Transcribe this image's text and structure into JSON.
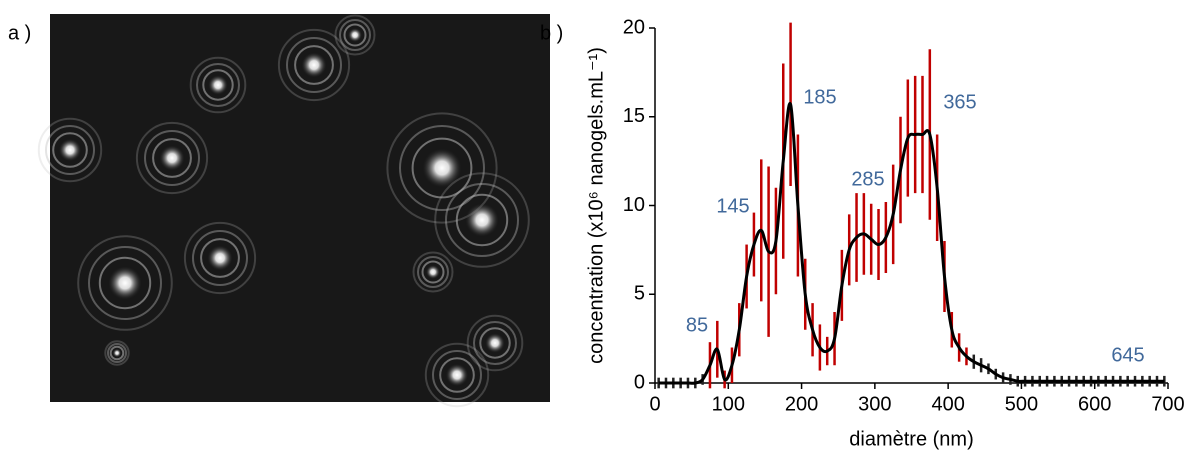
{
  "panel_labels": [
    "a )",
    "b )"
  ],
  "chart_data": {
    "type": "line",
    "xlabel": "diamètre (nm)",
    "ylabel": "concentration (x10⁶ nanogels.mL⁻¹)",
    "annotations": [
      "85",
      "145",
      "185",
      "285",
      "365",
      "645"
    ],
    "x": [
      5,
      15,
      25,
      35,
      45,
      55,
      65,
      75,
      85,
      95,
      105,
      115,
      125,
      135,
      145,
      155,
      165,
      175,
      185,
      195,
      205,
      215,
      225,
      235,
      245,
      255,
      265,
      275,
      285,
      295,
      305,
      315,
      325,
      335,
      345,
      355,
      365,
      375,
      385,
      395,
      405,
      415,
      425,
      435,
      445,
      455,
      465,
      475,
      485,
      495,
      505,
      515,
      525,
      535,
      545,
      555,
      565,
      575,
      585,
      595,
      605,
      615,
      625,
      635,
      645,
      655,
      665,
      675,
      685,
      695
    ],
    "values": [
      0,
      0,
      0,
      0,
      0,
      0,
      0.2,
      1.0,
      1.9,
      0.2,
      1.0,
      3.0,
      6.0,
      7.8,
      8.6,
      7.4,
      8.0,
      12.5,
      15.7,
      10.0,
      5.0,
      3.0,
      2.0,
      1.8,
      2.5,
      5.5,
      7.5,
      8.2,
      8.4,
      8.1,
      7.8,
      8.2,
      9.5,
      12.0,
      13.8,
      14.0,
      14.0,
      14.0,
      11.0,
      6.0,
      3.0,
      2.0,
      1.5,
      1.2,
      1.0,
      0.8,
      0.5,
      0.3,
      0.2,
      0.1,
      0.1,
      0.1,
      0.1,
      0.1,
      0.1,
      0.1,
      0.1,
      0.1,
      0.1,
      0.1,
      0.1,
      0.1,
      0.1,
      0.1,
      0.1,
      0.1,
      0.1,
      0.1,
      0.1,
      0.1
    ],
    "errors": [
      0.3,
      0.3,
      0.3,
      0.3,
      0.3,
      0.3,
      0.3,
      1.3,
      1.6,
      0.5,
      1.0,
      1.5,
      1.8,
      1.8,
      4.0,
      4.8,
      3.0,
      5.5,
      4.6,
      4.0,
      2.0,
      1.5,
      1.3,
      0.8,
      1.5,
      2.0,
      2.0,
      2.5,
      2.3,
      2.0,
      2.0,
      2.0,
      2.8,
      3.0,
      3.3,
      3.3,
      3.3,
      4.8,
      3.0,
      2.0,
      1.0,
      0.8,
      0.5,
      0.4,
      0.4,
      0.3,
      0.3,
      0.3,
      0.3,
      0.3,
      0.3,
      0.3,
      0.3,
      0.3,
      0.3,
      0.3,
      0.3,
      0.3,
      0.3,
      0.3,
      0.3,
      0.3,
      0.3,
      0.3,
      0.3,
      0.3,
      0.3,
      0.3,
      0.3,
      0.3
    ],
    "color": "#000000",
    "error_color": "#c00000",
    "annotation_color": "#41699b",
    "xlim": [
      0,
      700
    ],
    "xticks": [
      0,
      100,
      200,
      300,
      400,
      500,
      600,
      700
    ],
    "ylim": [
      0,
      20
    ],
    "yticks": [
      0,
      5,
      10,
      15,
      20
    ],
    "grid": false
  }
}
